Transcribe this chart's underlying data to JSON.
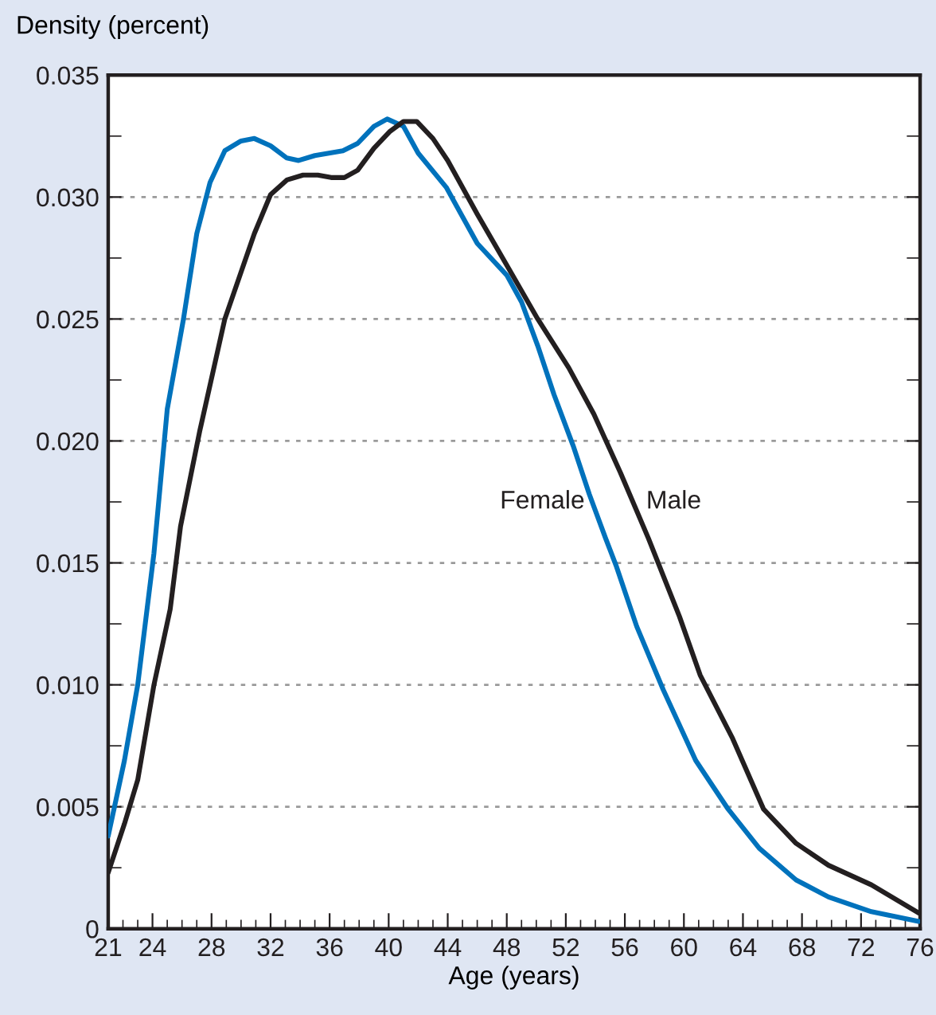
{
  "chart_data": {
    "type": "line",
    "xlabel": "Age (years)",
    "ylabel": "Density (percent)",
    "xlim": [
      21,
      76
    ],
    "ylim": [
      0,
      0.035
    ],
    "xticks": [
      21,
      {
        "value": 22,
        "label": null
      },
      {
        "value": 23,
        "label": null
      },
      24,
      {
        "value": 25,
        "label": null
      },
      {
        "value": 26,
        "label": null
      },
      {
        "value": 27,
        "label": null
      },
      28,
      {
        "value": 29,
        "label": null
      },
      {
        "value": 30,
        "label": null
      },
      {
        "value": 31,
        "label": null
      },
      32,
      {
        "value": 33,
        "label": null
      },
      {
        "value": 34,
        "label": null
      },
      {
        "value": 35,
        "label": null
      },
      36,
      {
        "value": 37,
        "label": null
      },
      {
        "value": 38,
        "label": null
      },
      {
        "value": 39,
        "label": null
      },
      40,
      {
        "value": 41,
        "label": null
      },
      {
        "value": 42,
        "label": null
      },
      {
        "value": 43,
        "label": null
      },
      44,
      {
        "value": 45,
        "label": null
      },
      {
        "value": 46,
        "label": null
      },
      {
        "value": 47,
        "label": null
      },
      48,
      {
        "value": 49,
        "label": null
      },
      {
        "value": 50,
        "label": null
      },
      {
        "value": 51,
        "label": null
      },
      52,
      {
        "value": 53,
        "label": null
      },
      {
        "value": 54,
        "label": null
      },
      {
        "value": 55,
        "label": null
      },
      56,
      {
        "value": 57,
        "label": null
      },
      {
        "value": 58,
        "label": null
      },
      {
        "value": 59,
        "label": null
      },
      60,
      {
        "value": 61,
        "label": null
      },
      {
        "value": 62,
        "label": null
      },
      {
        "value": 63,
        "label": null
      },
      64,
      {
        "value": 65,
        "label": null
      },
      {
        "value": 66,
        "label": null
      },
      {
        "value": 67,
        "label": null
      },
      68,
      {
        "value": 69,
        "label": null
      },
      {
        "value": 70,
        "label": null
      },
      {
        "value": 71,
        "label": null
      },
      72,
      {
        "value": 73,
        "label": null
      },
      {
        "value": 74,
        "label": null
      },
      {
        "value": 75,
        "label": null
      },
      76
    ],
    "yticks": [
      0,
      {
        "value": 0.0025,
        "label": null
      },
      {
        "value": 0.005,
        "label": "0.005"
      },
      {
        "value": 0.0075,
        "label": null
      },
      {
        "value": 0.01,
        "label": "0.010"
      },
      {
        "value": 0.0125,
        "label": null
      },
      {
        "value": 0.015,
        "label": "0.015"
      },
      {
        "value": 0.0175,
        "label": null
      },
      {
        "value": 0.02,
        "label": "0.020"
      },
      {
        "value": 0.0225,
        "label": null
      },
      {
        "value": 0.025,
        "label": "0.025"
      },
      {
        "value": 0.0275,
        "label": null
      },
      {
        "value": 0.03,
        "label": "0.030"
      },
      {
        "value": 0.0325,
        "label": null
      },
      {
        "value": 0.035,
        "label": "0.035"
      }
    ],
    "grid": "y",
    "line_style": "solid",
    "series": [
      {
        "name": "Female",
        "color": "#0072bc",
        "x": [
          21,
          22.1,
          23,
          24.1,
          25,
          26.1,
          27,
          27.9,
          28.9,
          30,
          30.9,
          32,
          33.1,
          33.9,
          35,
          36.9,
          37.9,
          39,
          39.9,
          41,
          42,
          43.9,
          46,
          48,
          49,
          50.1,
          51.2,
          52.5,
          53.6,
          54.7,
          55.4,
          56.8,
          58.6,
          60.8,
          63,
          65.1,
          67.6,
          69.8,
          72.7,
          75.9
        ],
        "values": [
          0.0038,
          0.0069,
          0.01,
          0.0154,
          0.0213,
          0.025,
          0.0285,
          0.0306,
          0.0319,
          0.0323,
          0.0324,
          0.0321,
          0.0316,
          0.0315,
          0.0317,
          0.0319,
          0.0322,
          0.0329,
          0.0332,
          0.0329,
          0.0318,
          0.0304,
          0.0281,
          0.0268,
          0.0257,
          0.0239,
          0.0219,
          0.0198,
          0.0178,
          0.016,
          0.0149,
          0.0124,
          0.0098,
          0.0069,
          0.0049,
          0.0033,
          0.002,
          0.0013,
          0.0007,
          0.0003
        ]
      },
      {
        "name": "Male",
        "color": "#231f20",
        "x": [
          21,
          22.1,
          23,
          24.1,
          25.2,
          25.9,
          27.2,
          28.9,
          30.9,
          32,
          33.1,
          34.2,
          35.2,
          36.1,
          37,
          37.9,
          39,
          40.1,
          41,
          41.9,
          43,
          44,
          46,
          48.2,
          50.1,
          52.2,
          53.9,
          55.7,
          57.6,
          59.7,
          61.1,
          63.3,
          65.4,
          67.6,
          69.8,
          72.7,
          75.9
        ],
        "values": [
          0.0023,
          0.0043,
          0.0061,
          0.01,
          0.0131,
          0.0165,
          0.0204,
          0.025,
          0.0285,
          0.0301,
          0.0307,
          0.0309,
          0.0309,
          0.0308,
          0.0308,
          0.0311,
          0.032,
          0.0327,
          0.0331,
          0.0331,
          0.0324,
          0.0315,
          0.0293,
          0.027,
          0.025,
          0.023,
          0.0211,
          0.0187,
          0.016,
          0.0128,
          0.0104,
          0.0078,
          0.0049,
          0.0035,
          0.0026,
          0.0018,
          0.00065
        ]
      }
    ]
  }
}
